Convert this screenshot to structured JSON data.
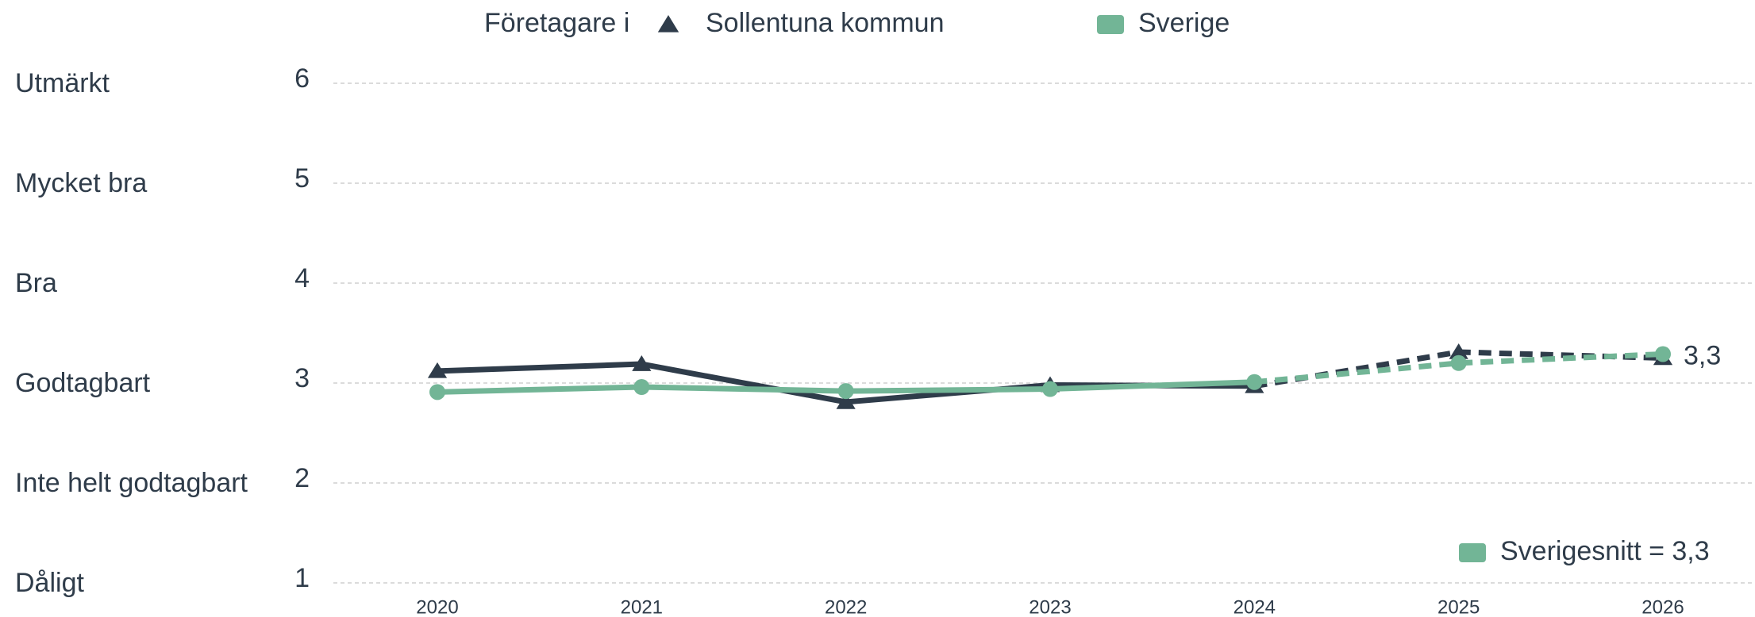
{
  "chart_data": {
    "type": "line",
    "legend_title": "Företagare i",
    "categories": [
      "2020",
      "2021",
      "2022",
      "2023",
      "2024",
      "2025",
      "2026"
    ],
    "dashed_from": "2024",
    "series": [
      {
        "name": "Sollentuna kommun",
        "color": "#2f3c4a",
        "marker": "triangle",
        "values": [
          3.12,
          3.19,
          2.81,
          2.98,
          2.97,
          3.31,
          3.25
        ]
      },
      {
        "name": "Sverige",
        "color": "#72b596",
        "marker": "circle",
        "values": [
          2.91,
          2.96,
          2.92,
          2.94,
          3.01,
          3.2,
          3.29
        ],
        "value_labels": [
          null,
          null,
          null,
          null,
          null,
          null,
          "3,3"
        ]
      }
    ],
    "ylim": [
      1,
      6
    ],
    "yticks": [
      1,
      2,
      3,
      4,
      5,
      6
    ],
    "y_category_labels": [
      "Dåligt",
      "Inte helt godtagbart",
      "Godtagbart",
      "Bra",
      "Mycket bra",
      "Utmärkt"
    ],
    "grid": true,
    "annotation": "Sverigesnitt = 3,3"
  }
}
